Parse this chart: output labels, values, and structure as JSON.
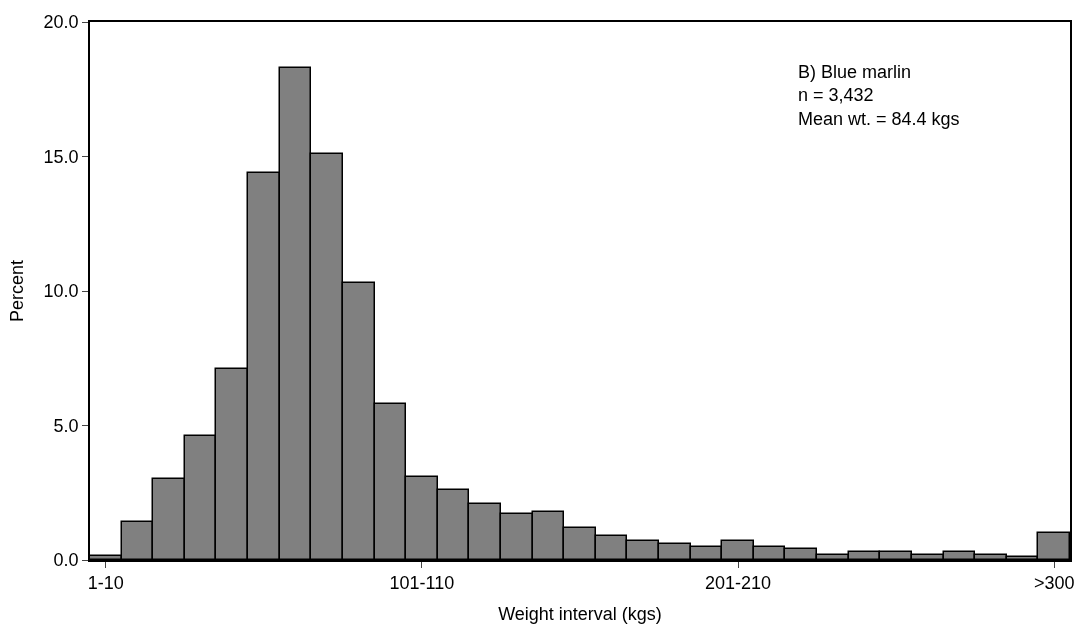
{
  "chart_data": {
    "type": "bar",
    "xlabel": "Weight interval (kgs)",
    "ylabel": "Percent",
    "categories": [
      "1-10",
      null,
      null,
      null,
      null,
      null,
      null,
      null,
      null,
      null,
      "101-110",
      null,
      null,
      null,
      null,
      null,
      null,
      null,
      null,
      null,
      "201-210",
      null,
      null,
      null,
      null,
      null,
      null,
      null,
      null,
      null,
      ">300"
    ],
    "series": [
      {
        "color": "#808080",
        "values": [
          0.15,
          1.4,
          3.0,
          4.6,
          7.1,
          14.4,
          18.3,
          15.1,
          10.3,
          5.8,
          3.1,
          2.6,
          2.1,
          1.7,
          1.8,
          1.2,
          0.9,
          0.7,
          0.6,
          0.5,
          0.7,
          0.5,
          0.4,
          0.2,
          0.3,
          0.3,
          0.2,
          0.3,
          0.2,
          0.1,
          1.0
        ]
      }
    ],
    "ylim": [
      0,
      20
    ],
    "yticks": [
      {
        "value": 0,
        "label": "0.0"
      },
      {
        "value": 5,
        "label": "5.0"
      },
      {
        "value": 10,
        "label": "10.0"
      },
      {
        "value": 15,
        "label": "15.0"
      },
      {
        "value": 20,
        "label": "20.0"
      }
    ],
    "annotations": [
      "B) Blue marlin\nn = 3,432\nMean wt. = 84.4 kgs"
    ]
  }
}
